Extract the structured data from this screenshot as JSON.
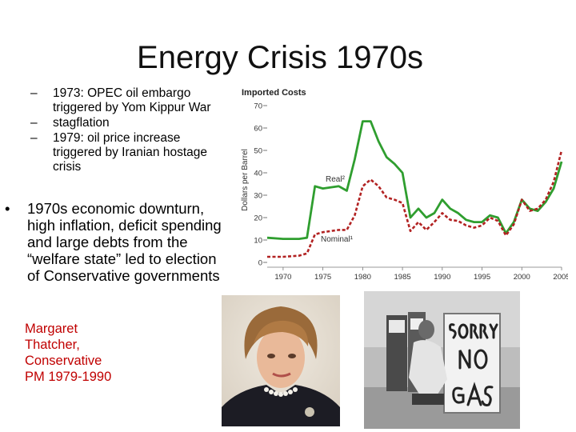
{
  "slide": {
    "title": "Energy Crisis 1970s",
    "sub_bullets": [
      "1973: OPEC oil embargo triggered by Yom Kippur War",
      "stagflation",
      "1979: oil price increase triggered by Iranian hostage crisis"
    ],
    "main_bullet": "1970s economic downturn, high inflation, deficit spending and large debts from the “welfare state” led to election of Conservative governments",
    "caption_lines": [
      "Margaret",
      "Thatcher,",
      "Conservative",
      "PM 1979-1990"
    ],
    "dash_glyph": "–",
    "bullet_glyph": "•"
  },
  "chart_data": {
    "type": "line",
    "title": "Imported Costs",
    "ylabel": "Dollars per Barrel",
    "xlabel": "",
    "xlim": [
      1968,
      2005
    ],
    "ylim": [
      0,
      70
    ],
    "x_ticks": [
      1970,
      1975,
      1980,
      1985,
      1990,
      1995,
      2000,
      2005
    ],
    "x_tick_labels": [
      "1970",
      "1975",
      "1980",
      "1985",
      "1990",
      "1995",
      "2000",
      "2005"
    ],
    "y_ticks": [
      0,
      10,
      20,
      30,
      40,
      50,
      60,
      70
    ],
    "y_tick_labels": [
      "0",
      "10",
      "20",
      "30",
      "40",
      "50",
      "60",
      "70"
    ],
    "series": [
      {
        "name": "Real",
        "label_text": "Real²",
        "color": "#2f9e2f",
        "style": "solid",
        "x": [
          1968,
          1970,
          1972,
          1973,
          1974,
          1975,
          1977,
          1978,
          1979,
          1980,
          1981,
          1982,
          1983,
          1984,
          1985,
          1986,
          1987,
          1988,
          1989,
          1990,
          1991,
          1992,
          1993,
          1994,
          1995,
          1996,
          1997,
          1998,
          1999,
          2000,
          2001,
          2002,
          2003,
          2004,
          2005
        ],
        "values": [
          11,
          10.5,
          10.5,
          11,
          34,
          33,
          34,
          32,
          46,
          63,
          63,
          54,
          47,
          44,
          40,
          20,
          24,
          20,
          22,
          28,
          24,
          22,
          19,
          18,
          18,
          21,
          20,
          13,
          18,
          28,
          24,
          23,
          27,
          33,
          45
        ]
      },
      {
        "name": "Nominal",
        "label_text": "Nominal¹",
        "color": "#b22222",
        "style": "dashed",
        "x": [
          1968,
          1970,
          1972,
          1973,
          1974,
          1975,
          1977,
          1978,
          1979,
          1980,
          1981,
          1982,
          1983,
          1984,
          1985,
          1986,
          1987,
          1988,
          1989,
          1990,
          1991,
          1992,
          1993,
          1994,
          1995,
          1996,
          1997,
          1998,
          1999,
          2000,
          2001,
          2002,
          2003,
          2004,
          2005
        ],
        "values": [
          2.5,
          2.5,
          3,
          4,
          12.5,
          13.5,
          14.5,
          14.5,
          21,
          34,
          37,
          34,
          29,
          28,
          26.5,
          14,
          18,
          14.5,
          18,
          22,
          19,
          18.5,
          16.5,
          15.5,
          16.5,
          20,
          18.5,
          12,
          17,
          28,
          23,
          24,
          28,
          36,
          50
        ]
      }
    ],
    "grid": false
  }
}
